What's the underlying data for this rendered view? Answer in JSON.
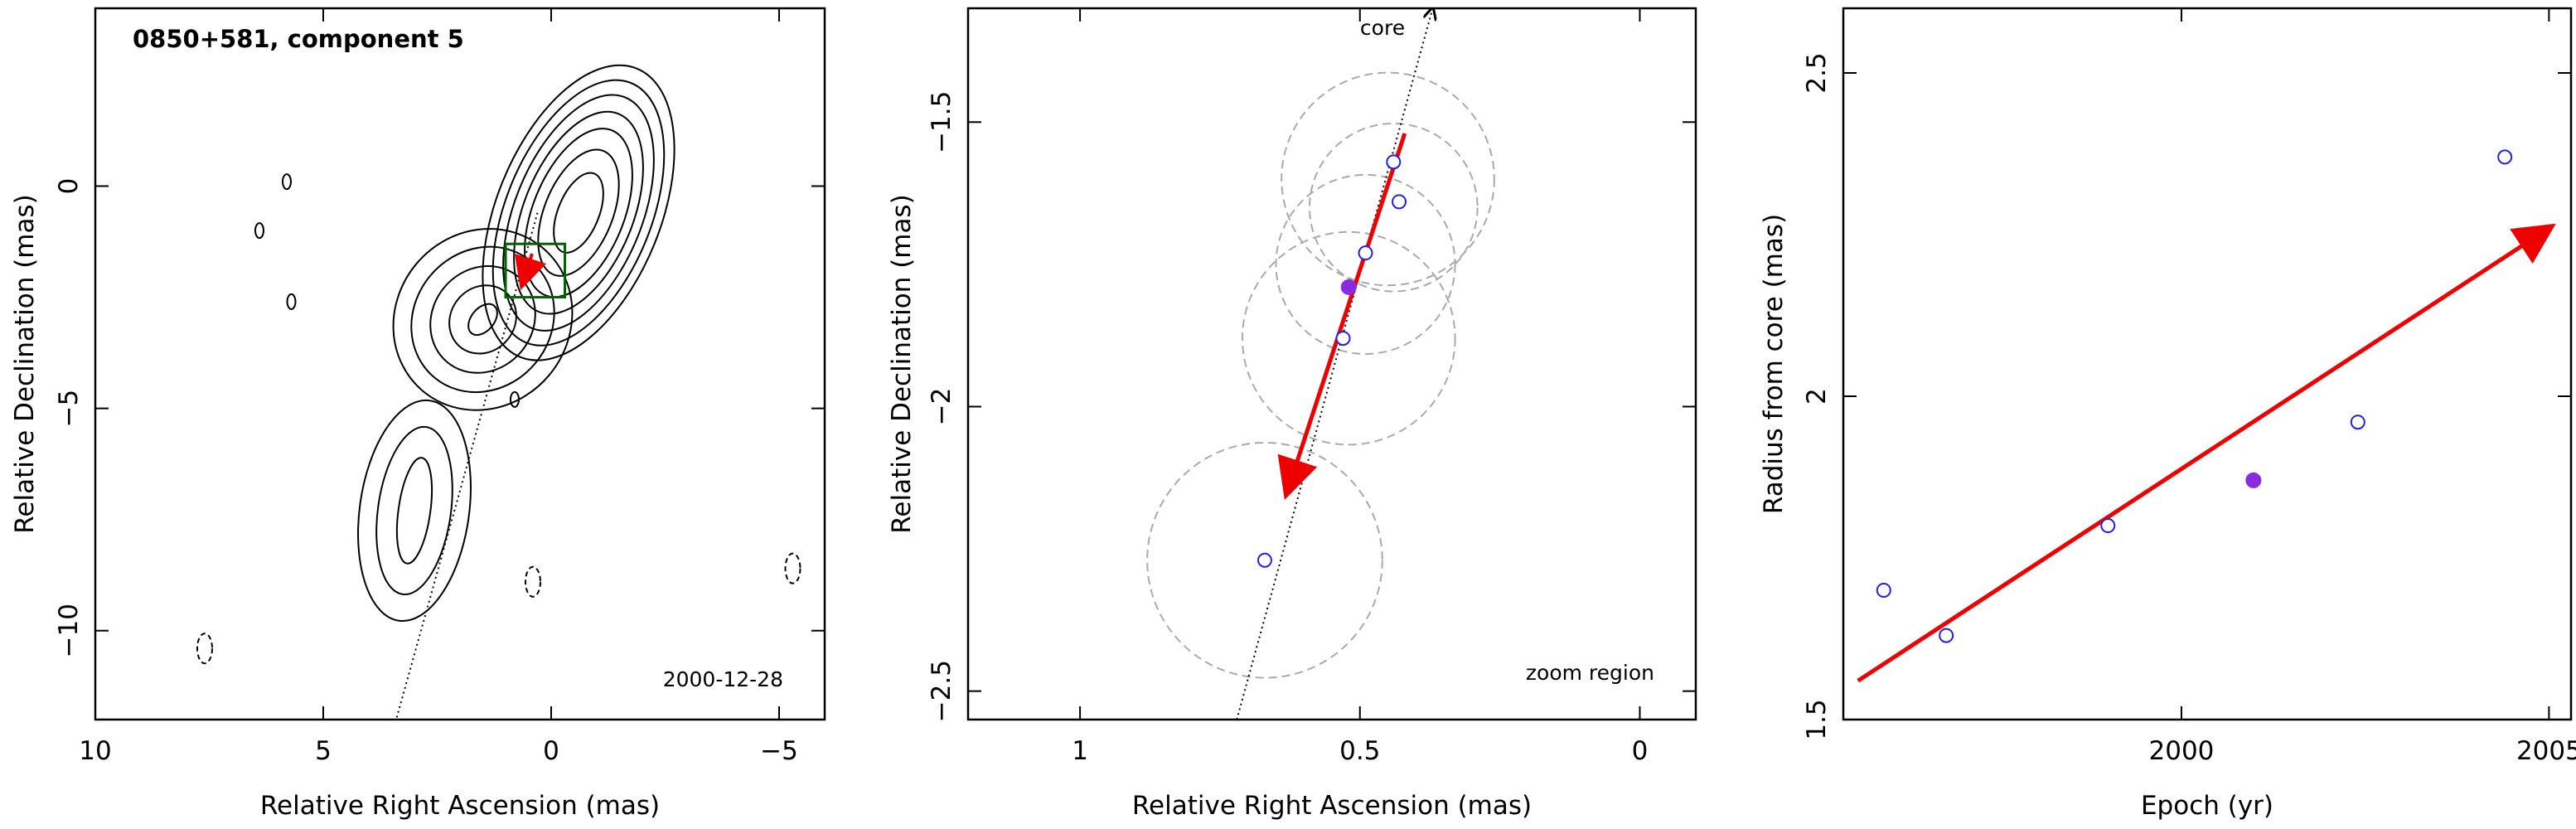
{
  "chart_data": [
    {
      "type": "contour",
      "panel": "left",
      "title": "0850+581, component 5",
      "date_label": "2000-12-28",
      "xlabel": "Relative Right Ascension (mas)",
      "ylabel": "Relative Declination (mas)",
      "xlim": [
        10,
        -6
      ],
      "ylim": [
        -12,
        4
      ],
      "x_ticks": [
        10,
        5,
        0,
        -5
      ],
      "y_ticks": [
        0,
        -5,
        -10
      ],
      "x_tick_labels": [
        "10",
        "5",
        "0",
        "−5"
      ],
      "y_tick_labels": [
        "0",
        "−5",
        "−10"
      ],
      "main_contours": {
        "center": [
          -0.6,
          -0.6
        ],
        "radii": [
          [
            0.45,
            0.95
          ],
          [
            0.75,
            1.5
          ],
          [
            1.0,
            2.0
          ],
          [
            1.2,
            2.4
          ],
          [
            1.4,
            2.8
          ],
          [
            1.6,
            3.15
          ],
          [
            1.8,
            3.5
          ]
        ]
      },
      "secondary_contours": {
        "center": [
          1.5,
          -3.0
        ],
        "radii": [
          [
            0.25,
            0.4
          ],
          [
            0.7,
            0.8
          ],
          [
            1.1,
            1.25
          ],
          [
            1.5,
            1.7
          ],
          [
            1.9,
            2.1
          ]
        ]
      },
      "lower_component_contours": {
        "center": [
          3.0,
          -7.3
        ],
        "radii": [
          [
            0.35,
            1.2
          ],
          [
            0.8,
            1.9
          ],
          [
            1.2,
            2.5
          ]
        ]
      },
      "negative_contours": [
        [
          0.4,
          -8.9
        ],
        [
          7.6,
          -10.4
        ],
        [
          -5.3,
          -8.6
        ]
      ],
      "small_positive_contours": [
        [
          5.8,
          0.1
        ],
        [
          6.4,
          -1.0
        ],
        [
          5.7,
          -2.6
        ],
        [
          0.8,
          -4.8
        ]
      ],
      "zoom_box": {
        "x": [
          1.0,
          -0.3
        ],
        "y": [
          -1.3,
          -2.5
        ]
      },
      "jet_axis_line": [
        [
          0.3,
          -0.6
        ],
        [
          3.4,
          -12.0
        ]
      ],
      "motion_vector": [
        [
          0.42,
          -1.52
        ],
        [
          0.63,
          -2.2
        ]
      ]
    },
    {
      "type": "scatter",
      "panel": "middle",
      "annotations": [
        "core",
        "zoom region"
      ],
      "xlabel": "Relative Right Ascension (mas)",
      "ylabel": "Relative Declination (mas)",
      "xlim": [
        1.2,
        -0.1
      ],
      "ylim": [
        -2.55,
        -1.3
      ],
      "x_ticks": [
        1,
        0.5,
        0
      ],
      "y_ticks": [
        -1.5,
        -2,
        -2.5
      ],
      "x_tick_labels": [
        "1",
        "0.5",
        "0"
      ],
      "y_tick_labels": [
        "−1.5",
        "−2",
        "−2.5"
      ],
      "points_open": [
        {
          "x": 0.44,
          "y": -1.57
        },
        {
          "x": 0.43,
          "y": -1.64
        },
        {
          "x": 0.49,
          "y": -1.73
        },
        {
          "x": 0.53,
          "y": -1.88
        },
        {
          "x": 0.67,
          "y": -2.27
        }
      ],
      "points_filled": [
        {
          "x": 0.52,
          "y": -1.79
        }
      ],
      "circles": [
        {
          "x": 0.45,
          "y": -1.6,
          "r": 0.19
        },
        {
          "x": 0.44,
          "y": -1.65,
          "r": 0.15
        },
        {
          "x": 0.49,
          "y": -1.75,
          "r": 0.16
        },
        {
          "x": 0.52,
          "y": -1.88,
          "r": 0.19
        },
        {
          "x": 0.67,
          "y": -2.27,
          "r": 0.21
        }
      ],
      "jet_axis_line": [
        [
          0.72,
          -2.55
        ],
        [
          0.37,
          -1.3
        ]
      ],
      "motion_vector": [
        [
          0.42,
          -1.52
        ],
        [
          0.63,
          -2.15
        ]
      ]
    },
    {
      "type": "scatter",
      "panel": "right",
      "xlabel": "Epoch (yr)",
      "ylabel": "Radius from core (mas)",
      "xlim": [
        1995.4,
        2005.3
      ],
      "ylim": [
        1.5,
        2.6
      ],
      "x_ticks": [
        2000,
        2005
      ],
      "y_ticks": [
        1.5,
        2,
        2.5
      ],
      "x_tick_labels": [
        "2000",
        "2005"
      ],
      "y_tick_labels": [
        "1.5",
        "2",
        "2.5"
      ],
      "points_open": [
        {
          "x": 1995.95,
          "y": 1.7
        },
        {
          "x": 1996.8,
          "y": 1.63
        },
        {
          "x": 1999.0,
          "y": 1.8
        },
        {
          "x": 2002.4,
          "y": 1.96
        },
        {
          "x": 2004.4,
          "y": 2.37
        }
      ],
      "points_filled": [
        {
          "x": 2000.98,
          "y": 1.87
        }
      ],
      "fit_line": [
        [
          1995.6,
          1.56
        ],
        [
          2005.0,
          2.26
        ]
      ]
    }
  ],
  "colors": {
    "vector": "#ee0000",
    "open_point": "#2020ee",
    "filled_point": "#8a2be2",
    "box": "#006400",
    "circle": "#aaaaaa"
  }
}
